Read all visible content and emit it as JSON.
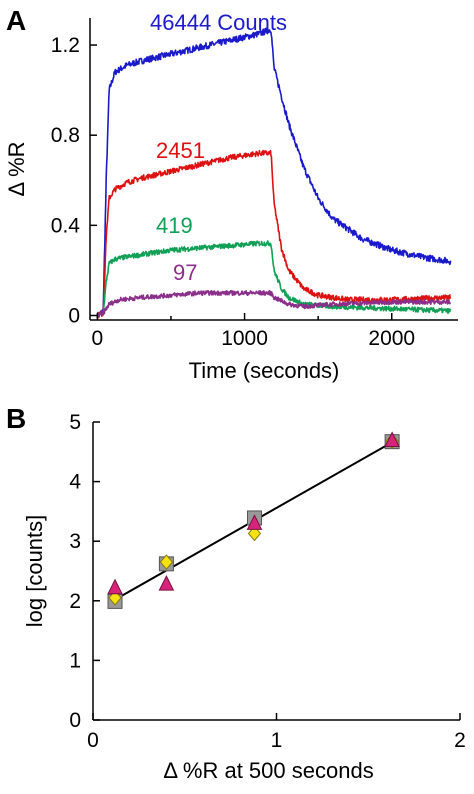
{
  "chart_data": [
    {
      "panel": "A",
      "type": "line",
      "xlabel": "Time (seconds)",
      "ylabel": "Δ %R",
      "xlim": [
        -50,
        2450
      ],
      "ylim": [
        -0.02,
        1.32
      ],
      "xticks": [
        0,
        1000,
        2000
      ],
      "yticks": [
        0,
        0.4,
        0.8,
        1.2
      ],
      "xtick_labels": [
        "0",
        "1000",
        "2000"
      ],
      "ytick_labels": [
        "0",
        "0.4",
        "0.8",
        "1.2"
      ],
      "series": [
        {
          "label": "46444 Counts",
          "color": "#1a1acc",
          "x": [
            0,
            40,
            60,
            80,
            120,
            200,
            300,
            500,
            700,
            900,
            1100,
            1180,
            1200,
            1300,
            1400,
            1500,
            1600,
            1800,
            2000,
            2200,
            2400
          ],
          "y": [
            0,
            0.02,
            0.6,
            1.0,
            1.08,
            1.11,
            1.13,
            1.16,
            1.19,
            1.22,
            1.25,
            1.27,
            1.1,
            0.85,
            0.66,
            0.52,
            0.43,
            0.34,
            0.29,
            0.26,
            0.24
          ]
        },
        {
          "label": "2451",
          "color": "#dd1111",
          "x": [
            0,
            40,
            60,
            80,
            120,
            200,
            300,
            500,
            700,
            900,
            1100,
            1180,
            1200,
            1250,
            1300,
            1400,
            1500,
            1700,
            2000,
            2400
          ],
          "y": [
            0,
            0.01,
            0.35,
            0.52,
            0.56,
            0.59,
            0.61,
            0.64,
            0.67,
            0.7,
            0.72,
            0.72,
            0.5,
            0.3,
            0.2,
            0.12,
            0.09,
            0.07,
            0.07,
            0.08
          ]
        },
        {
          "label": "419",
          "color": "#11a055",
          "x": [
            0,
            40,
            60,
            80,
            120,
            200,
            300,
            500,
            700,
            900,
            1100,
            1180,
            1200,
            1250,
            1300,
            1400,
            1600,
            2000,
            2400
          ],
          "y": [
            0,
            0.01,
            0.15,
            0.23,
            0.25,
            0.26,
            0.27,
            0.29,
            0.3,
            0.31,
            0.32,
            0.32,
            0.2,
            0.12,
            0.08,
            0.05,
            0.04,
            0.03,
            0.02
          ]
        },
        {
          "label": "97",
          "color": "#8a2f8a",
          "x": [
            0,
            40,
            80,
            150,
            300,
            500,
            700,
            900,
            1100,
            1180,
            1200,
            1300,
            1400,
            1600,
            2000,
            2400
          ],
          "y": [
            0,
            0.01,
            0.05,
            0.07,
            0.08,
            0.09,
            0.1,
            0.1,
            0.1,
            0.1,
            0.08,
            0.05,
            0.04,
            0.05,
            0.06,
            0.06
          ]
        }
      ]
    },
    {
      "panel": "B",
      "type": "scatter",
      "xlabel": "Δ %R at 500 seconds",
      "ylabel": "log [counts]",
      "xlim": [
        0,
        2
      ],
      "ylim": [
        0,
        5
      ],
      "xticks": [
        0,
        1,
        2
      ],
      "yticks": [
        0,
        1,
        2,
        3,
        4,
        5
      ],
      "xtick_labels": [
        "0",
        "1",
        "2"
      ],
      "ytick_labels": [
        "0",
        "1",
        "2",
        "3",
        "4",
        "5"
      ],
      "series": [
        {
          "marker": "square",
          "color": "#999999",
          "x": [
            0.12,
            0.4,
            0.88,
            1.63
          ],
          "y": [
            1.99,
            2.62,
            3.39,
            4.67
          ]
        },
        {
          "marker": "diamond",
          "color": "#f5e214",
          "x": [
            0.12,
            0.4,
            0.88,
            1.63
          ],
          "y": [
            2.05,
            2.65,
            3.13,
            4.68
          ]
        },
        {
          "marker": "triangle",
          "color": "#d6247a",
          "x": [
            0.12,
            0.4,
            0.88,
            1.63
          ],
          "y": [
            2.22,
            2.28,
            3.3,
            4.69
          ]
        }
      ],
      "fit_line": {
        "x": [
          0.12,
          1.63
        ],
        "y": [
          2.02,
          4.66
        ],
        "color": "#000000"
      }
    }
  ]
}
